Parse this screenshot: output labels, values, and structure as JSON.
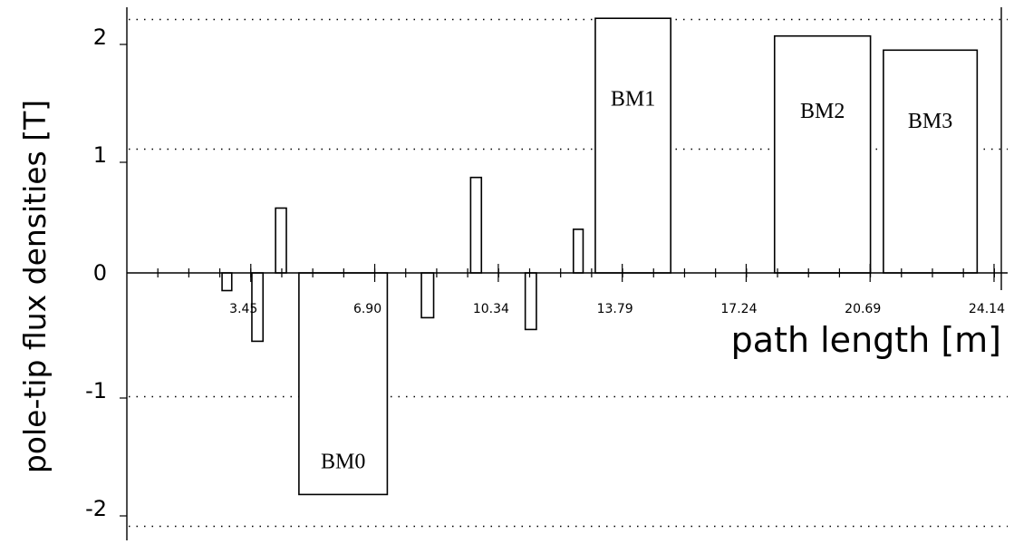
{
  "chart_data": {
    "type": "bar",
    "xlabel": "path length [m]",
    "ylabel": "pole-tip flux densities [T]",
    "xlim": [
      0,
      24.6
    ],
    "ylim": [
      -2.3,
      2.3
    ],
    "x_ticks": [
      3.45,
      6.9,
      10.34,
      13.79,
      17.24,
      20.69,
      24.14
    ],
    "x_tick_labels": [
      "3.45",
      "6.90",
      "10.34",
      "13.79",
      "17.24",
      "20.69",
      "24.14"
    ],
    "y_ticks": [
      -2,
      -1,
      0,
      1,
      2
    ],
    "y_tick_labels": [
      "-2",
      "-1",
      "0",
      "1",
      "2"
    ],
    "y_gridlines": [
      2.15,
      1.05,
      -1.05,
      -2.15
    ],
    "grid": "dotted horizontal",
    "bars": [
      {
        "x_start": 2.65,
        "x_end": 2.92,
        "value": -0.15,
        "label": ""
      },
      {
        "x_start": 3.48,
        "x_end": 3.79,
        "value": -0.58,
        "label": ""
      },
      {
        "x_start": 4.14,
        "x_end": 4.44,
        "value": 0.55,
        "label": ""
      },
      {
        "x_start": 4.79,
        "x_end": 7.25,
        "value": -1.88,
        "label": "BM0"
      },
      {
        "x_start": 8.2,
        "x_end": 8.54,
        "value": -0.38,
        "label": ""
      },
      {
        "x_start": 9.57,
        "x_end": 9.87,
        "value": 0.81,
        "label": ""
      },
      {
        "x_start": 11.09,
        "x_end": 11.4,
        "value": -0.48,
        "label": ""
      },
      {
        "x_start": 12.43,
        "x_end": 12.7,
        "value": 0.37,
        "label": ""
      },
      {
        "x_start": 13.04,
        "x_end": 15.14,
        "value": 2.16,
        "label": "BM1"
      },
      {
        "x_start": 18.03,
        "x_end": 20.7,
        "value": 2.01,
        "label": "BM2"
      },
      {
        "x_start": 21.06,
        "x_end": 23.67,
        "value": 1.89,
        "label": "BM3"
      }
    ]
  }
}
